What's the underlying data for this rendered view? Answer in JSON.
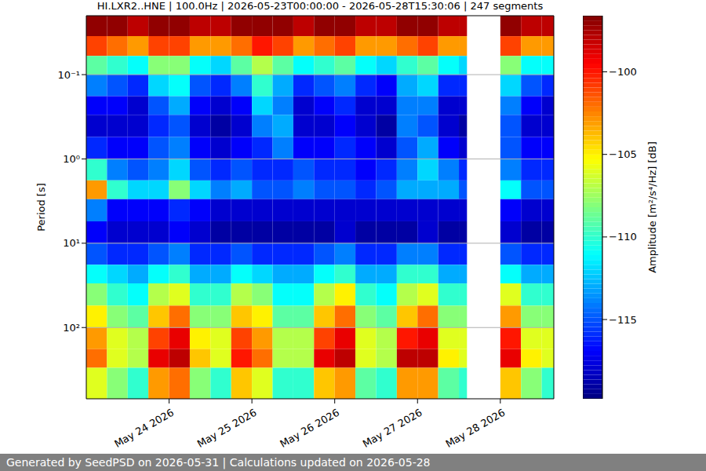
{
  "chart_data": {
    "type": "heatmap",
    "title": "HI.LXR2..HNE | 100.0Hz | 2026-05-23T00:00:00 - 2026-05-28T15:30:06 | 247 segments",
    "y_label": "Period [s]",
    "footer": "Generated by SeedPSD on 2026-05-31 | Calculations updated on 2026-05-28",
    "log": "y",
    "grid": true,
    "xlim": [
      "2026-05-23T00:00:00",
      "2026-05-28T15:30:06"
    ],
    "xticks": [
      {
        "value": "2026-05-24T00:00:00",
        "label": "May 24 2026"
      },
      {
        "value": "2026-05-25T00:00:00",
        "label": "May 25 2026"
      },
      {
        "value": "2026-05-26T00:00:00",
        "label": "May 26 2026"
      },
      {
        "value": "2026-05-27T00:00:00",
        "label": "May 27 2026"
      },
      {
        "value": "2026-05-28T00:00:00",
        "label": "May 28 2026"
      }
    ],
    "ylim": [
      0.02,
      700
    ],
    "yticks": [
      {
        "value": 0.1,
        "label": "10⁻¹"
      },
      {
        "value": 1,
        "label": "10⁰"
      },
      {
        "value": 10,
        "label": "10¹"
      },
      {
        "value": 100,
        "label": "10²"
      }
    ],
    "x_bins": [
      "2026-05-23T00:00:00",
      "2026-05-23T06:00:00",
      "2026-05-23T12:00:00",
      "2026-05-23T18:00:00",
      "2026-05-24T00:00:00",
      "2026-05-24T06:00:00",
      "2026-05-24T12:00:00",
      "2026-05-24T18:00:00",
      "2026-05-25T00:00:00",
      "2026-05-25T06:00:00",
      "2026-05-25T12:00:00",
      "2026-05-25T18:00:00",
      "2026-05-26T00:00:00",
      "2026-05-26T06:00:00",
      "2026-05-26T12:00:00",
      "2026-05-26T18:00:00",
      "2026-05-27T00:00:00",
      "2026-05-27T06:00:00",
      "2026-05-27T12:00:00",
      "2026-05-27T14:20:00",
      "2026-05-28T00:00:00",
      "2026-05-28T06:00:00",
      "2026-05-28T12:00:00",
      "2026-05-28T15:30:06"
    ],
    "y_bins": [
      0.02,
      0.035,
      0.06,
      0.1,
      0.18,
      0.3,
      0.55,
      1,
      1.8,
      3,
      5.5,
      10,
      18,
      30,
      55,
      100,
      180,
      300,
      700
    ],
    "values": [
      [
        -97,
        -97,
        -98,
        -97,
        -97,
        -98,
        -98,
        -97,
        -97,
        -97,
        -98,
        -97,
        -97,
        -98,
        -98,
        -97,
        -97,
        -98,
        -98,
        null,
        -97,
        -98,
        -98
      ],
      [
        -101,
        -102,
        -103,
        -101,
        -101,
        -103,
        -103,
        -102,
        -100,
        -101,
        -103,
        -102,
        -101,
        -103,
        -103,
        -102,
        -101,
        -103,
        -103,
        null,
        -101,
        -103,
        -103
      ],
      [
        -109,
        -110,
        -111,
        -108,
        -108,
        -111,
        -112,
        -109,
        -107,
        -109,
        -111,
        -110,
        -109,
        -111,
        -112,
        -110,
        -109,
        -111,
        -112,
        null,
        -108,
        -111,
        -111
      ],
      [
        -114,
        -115,
        -116,
        -112,
        -111,
        -115,
        -116,
        -114,
        -110,
        -113,
        -116,
        -115,
        -114,
        -116,
        -117,
        -113,
        -112,
        -116,
        -116,
        null,
        -112,
        -115,
        -116
      ],
      [
        -117,
        -117,
        -118,
        -115,
        -113,
        -117,
        -118,
        -117,
        -112,
        -114,
        -118,
        -117,
        -116,
        -118,
        -118,
        -114,
        -114,
        -118,
        -118,
        null,
        -114,
        -117,
        -118
      ],
      [
        -118,
        -118,
        -118,
        -116,
        -115,
        -118,
        -119,
        -118,
        -114,
        -113,
        -118,
        -118,
        -117,
        -118,
        -119,
        -114,
        -115,
        -118,
        -119,
        null,
        -115,
        -118,
        -118
      ],
      [
        -116,
        -117,
        -117,
        -115,
        -114,
        -117,
        -118,
        -117,
        -116,
        -114,
        -117,
        -117,
        -116,
        -117,
        -118,
        -115,
        -113,
        -117,
        -118,
        null,
        -115,
        -117,
        -117
      ],
      [
        -110,
        -114,
        -115,
        -114,
        -112,
        -115,
        -116,
        -115,
        -116,
        -116,
        -115,
        -116,
        -116,
        -117,
        -116,
        -114,
        -112,
        -114,
        -116,
        null,
        -114,
        -116,
        -116
      ],
      [
        -103,
        -110,
        -112,
        -112,
        -108,
        -112,
        -114,
        -113,
        -115,
        -115,
        -114,
        -115,
        -115,
        -116,
        -115,
        -113,
        -113,
        -113,
        -115,
        null,
        -111,
        -115,
        -115
      ],
      [
        -114,
        -117,
        -117,
        -117,
        -116,
        -117,
        -118,
        -118,
        -118,
        -118,
        -118,
        -118,
        -118,
        -118,
        -118,
        -118,
        -118,
        -118,
        -118,
        null,
        -117,
        -118,
        -118
      ],
      [
        -117,
        -118,
        -118,
        -118,
        -117,
        -118,
        -119,
        -119,
        -119,
        -119,
        -119,
        -119,
        -118,
        -119,
        -119,
        -119,
        -118,
        -119,
        -119,
        null,
        -118,
        -119,
        -119
      ],
      [
        -115,
        -116,
        -116,
        -115,
        -114,
        -116,
        -116,
        -115,
        -116,
        -116,
        -116,
        -115,
        -114,
        -116,
        -116,
        -114,
        -114,
        -116,
        -116,
        null,
        -115,
        -116,
        -116
      ],
      [
        -111,
        -112,
        -113,
        -111,
        -110,
        -113,
        -113,
        -111,
        -112,
        -113,
        -113,
        -111,
        -110,
        -113,
        -113,
        -110,
        -110,
        -113,
        -113,
        null,
        -111,
        -113,
        -113
      ],
      [
        -108,
        -110,
        -111,
        -107,
        -106,
        -110,
        -110,
        -107,
        -108,
        -111,
        -111,
        -107,
        -105,
        -110,
        -111,
        -107,
        -106,
        -110,
        -110,
        null,
        -106,
        -110,
        -110
      ],
      [
        -105,
        -108,
        -109,
        -104,
        -102,
        -108,
        -108,
        -104,
        -105,
        -109,
        -109,
        -104,
        -102,
        -108,
        -109,
        -104,
        -102,
        -108,
        -108,
        null,
        -103,
        -108,
        -108
      ],
      [
        -103,
        -106,
        -107,
        -101,
        -99,
        -105,
        -106,
        -101,
        -103,
        -107,
        -107,
        -101,
        -99,
        -106,
        -107,
        -100,
        -99,
        -106,
        -106,
        null,
        -100,
        -106,
        -106
      ],
      [
        -102,
        -106,
        -107,
        -99,
        -98,
        -104,
        -106,
        -100,
        -102,
        -107,
        -107,
        -99,
        -98,
        -106,
        -107,
        -98,
        -98,
        -105,
        -106,
        null,
        -99,
        -105,
        -106
      ],
      [
        -106,
        -108,
        -110,
        -103,
        -102,
        -108,
        -110,
        -104,
        -106,
        -110,
        -110,
        -104,
        -103,
        -109,
        -110,
        -103,
        -103,
        -109,
        -110,
        null,
        -104,
        -108,
        -110
      ]
    ],
    "colorbar": {
      "label": "Amplitude [m²/s⁴/Hz] [dB]",
      "range": [
        -119.8,
        -96.6
      ],
      "ticks": [
        {
          "value": -115,
          "label": "−115"
        },
        {
          "value": -110,
          "label": "−110"
        },
        {
          "value": -105,
          "label": "−105"
        },
        {
          "value": -100,
          "label": "−100"
        }
      ]
    }
  }
}
